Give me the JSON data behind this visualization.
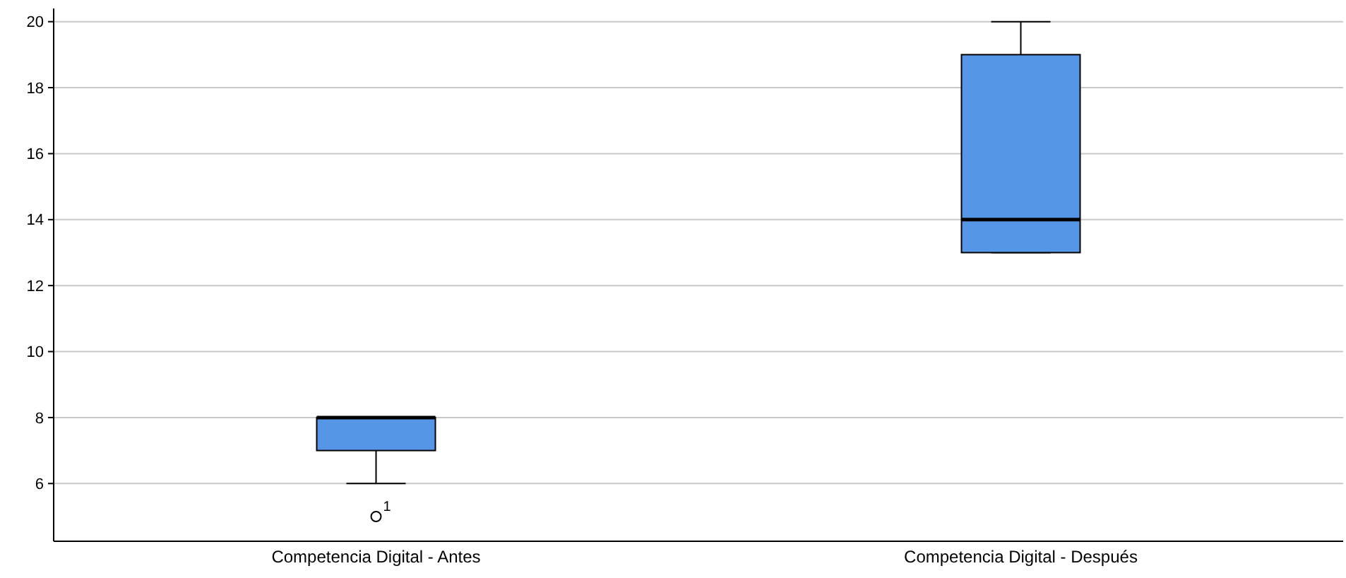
{
  "chart_data": {
    "type": "box",
    "categories": [
      "Competencia Digital - Antes",
      "Competencia Digital - Después"
    ],
    "series": [
      {
        "color": "#5596e6",
        "boxes": [
          {
            "low": 6,
            "q1": 7,
            "median": 8,
            "q3": 8,
            "high": 8,
            "outliers": [
              5
            ]
          },
          {
            "low": 13,
            "q1": 13,
            "median": 14,
            "q3": 19,
            "high": 20
          }
        ]
      }
    ],
    "ylim": [
      4.25,
      20.4
    ],
    "yticks": [
      6,
      8,
      10,
      12,
      14,
      16,
      18,
      20
    ],
    "grid": "y",
    "annotations": [
      "1"
    ]
  }
}
